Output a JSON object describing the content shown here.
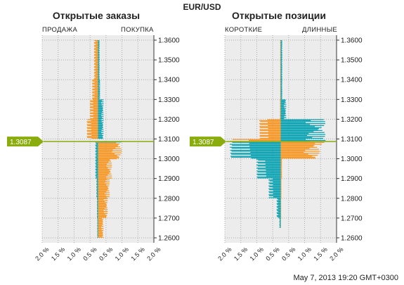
{
  "title": "EUR/USD",
  "timestamp": "May 7, 2013 19:20 GMT+0300",
  "colors": {
    "orange": "#f7941d",
    "teal": "#00a0b0",
    "marker": "#8aac0c",
    "grid_bg": "#ececec"
  },
  "chart_data": [
    {
      "type": "bar",
      "orientation": "horizontal-butterfly",
      "title": "Открытые заказы",
      "left_label": "ПРОДАЖА",
      "right_label": "ПОКУПКА",
      "ylim": [
        1.2575,
        1.3625
      ],
      "y_ticks": [
        "1.3600",
        "1.3500",
        "1.3400",
        "1.3300",
        "1.3200",
        "1.3100",
        "1.3000",
        "1.2900",
        "1.2800",
        "1.2700",
        "1.2600"
      ],
      "x_ticks": [
        "2.0 %",
        "1.5 %",
        "1.0 %",
        "0.5 %",
        "0.5 %",
        "1.0 %",
        "1.5 %",
        "2.0 %"
      ],
      "current_price": 1.3087,
      "current_price_label": "1.3087",
      "levels": [
        {
          "price_from": 1.36,
          "price_to": 1.34,
          "left_pct": 0.15,
          "right_pct": 0.06
        },
        {
          "price_from": 1.34,
          "price_to": 1.33,
          "left_pct": 0.22,
          "right_pct": 0.08
        },
        {
          "price_from": 1.33,
          "price_to": 1.32,
          "left_pct": 0.3,
          "right_pct": 0.2
        },
        {
          "price_from": 1.32,
          "price_to": 1.31,
          "left_pct": 0.42,
          "right_pct": 0.2
        },
        {
          "price_from": 1.3087,
          "price_to": 1.3,
          "left_pct": 0.1,
          "right_pct": 0.85
        },
        {
          "price_from": 1.3,
          "price_to": 1.29,
          "left_pct": 0.1,
          "right_pct": 0.5
        },
        {
          "price_from": 1.29,
          "price_to": 1.28,
          "left_pct": 0.06,
          "right_pct": 0.42
        },
        {
          "price_from": 1.28,
          "price_to": 1.27,
          "left_pct": 0.04,
          "right_pct": 0.35
        },
        {
          "price_from": 1.27,
          "price_to": 1.26,
          "left_pct": 0.03,
          "right_pct": 0.2
        }
      ]
    },
    {
      "type": "bar",
      "orientation": "horizontal-butterfly",
      "title": "Открытые позиции",
      "left_label": "КОРОТКИЕ",
      "right_label": "ДЛИННЫЕ",
      "ylim": [
        1.2575,
        1.3625
      ],
      "y_ticks": [
        "1.3600",
        "1.3500",
        "1.3400",
        "1.3300",
        "1.3200",
        "1.3100",
        "1.3000",
        "1.2900",
        "1.2800",
        "1.2700",
        "1.2600"
      ],
      "x_ticks": [
        "2.0 %",
        "1.5 %",
        "1.0 %",
        "0.5 %",
        "0.5 %",
        "1.0 %",
        "1.5 %",
        "2.0 %"
      ],
      "current_price": 1.3087,
      "current_price_label": "1.3087",
      "levels": [
        {
          "price_from": 1.36,
          "price_to": 1.33,
          "left_pct": 0.02,
          "right_pct": 0.06
        },
        {
          "price_from": 1.33,
          "price_to": 1.32,
          "left_pct": 0.03,
          "right_pct": 0.2
        },
        {
          "price_from": 1.32,
          "price_to": 1.31,
          "left_pct": 0.8,
          "right_pct": 1.6
        },
        {
          "price_from": 1.31,
          "price_to": 1.3,
          "left_pct": 1.9,
          "right_pct": 1.4
        },
        {
          "price_from": 1.3,
          "price_to": 1.29,
          "left_pct": 0.9,
          "right_pct": 0.05
        },
        {
          "price_from": 1.29,
          "price_to": 1.28,
          "left_pct": 0.45,
          "right_pct": 0.03
        },
        {
          "price_from": 1.28,
          "price_to": 1.27,
          "left_pct": 0.15,
          "right_pct": 0.02
        },
        {
          "price_from": 1.27,
          "price_to": 1.265,
          "left_pct": 0.05,
          "right_pct": 0.01
        }
      ]
    }
  ]
}
